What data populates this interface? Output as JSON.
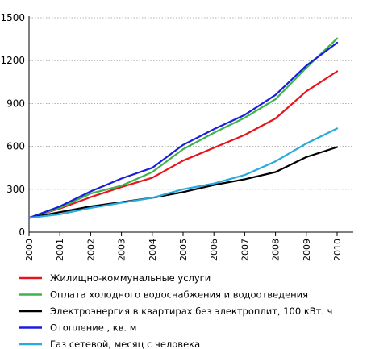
{
  "chart_data": {
    "type": "line",
    "title": "",
    "xlabel": "",
    "ylabel": "",
    "x": [
      "2000",
      "2001",
      "2002",
      "2003",
      "2004",
      "2005",
      "2006",
      "2007",
      "2008",
      "2009",
      "2010"
    ],
    "ylim": [
      0,
      1500
    ],
    "yticks": [
      "0",
      "300",
      "600",
      "900",
      "1200",
      "1500"
    ],
    "grid": "horizontal",
    "legend_position": "bottom",
    "series": [
      {
        "name": "Жилищно-коммунальные услуги",
        "color": "#e8141b",
        "values": [
          100,
          165,
          245,
          315,
          380,
          500,
          590,
          680,
          795,
          985,
          1125
        ]
      },
      {
        "name": "Оплата холодного водоснабжения и водоотведения",
        "color": "#3cb44b",
        "values": [
          100,
          170,
          270,
          325,
          420,
          580,
          695,
          800,
          930,
          1150,
          1355
        ]
      },
      {
        "name": "Электроэнергия в квартирах без электроплит, 100 кВт. ч",
        "color": "#000000",
        "values": [
          100,
          140,
          180,
          210,
          240,
          280,
          330,
          370,
          420,
          525,
          595
        ]
      },
      {
        "name": "Отопление , кв. м",
        "color": "#1c1ce0",
        "values": [
          100,
          180,
          285,
          375,
          450,
          610,
          720,
          820,
          960,
          1165,
          1325
        ]
      },
      {
        "name": "Газ сетевой, месяц с человека",
        "color": "#28a9e0",
        "values": [
          100,
          125,
          170,
          205,
          240,
          300,
          340,
          400,
          495,
          620,
          725
        ]
      }
    ]
  }
}
